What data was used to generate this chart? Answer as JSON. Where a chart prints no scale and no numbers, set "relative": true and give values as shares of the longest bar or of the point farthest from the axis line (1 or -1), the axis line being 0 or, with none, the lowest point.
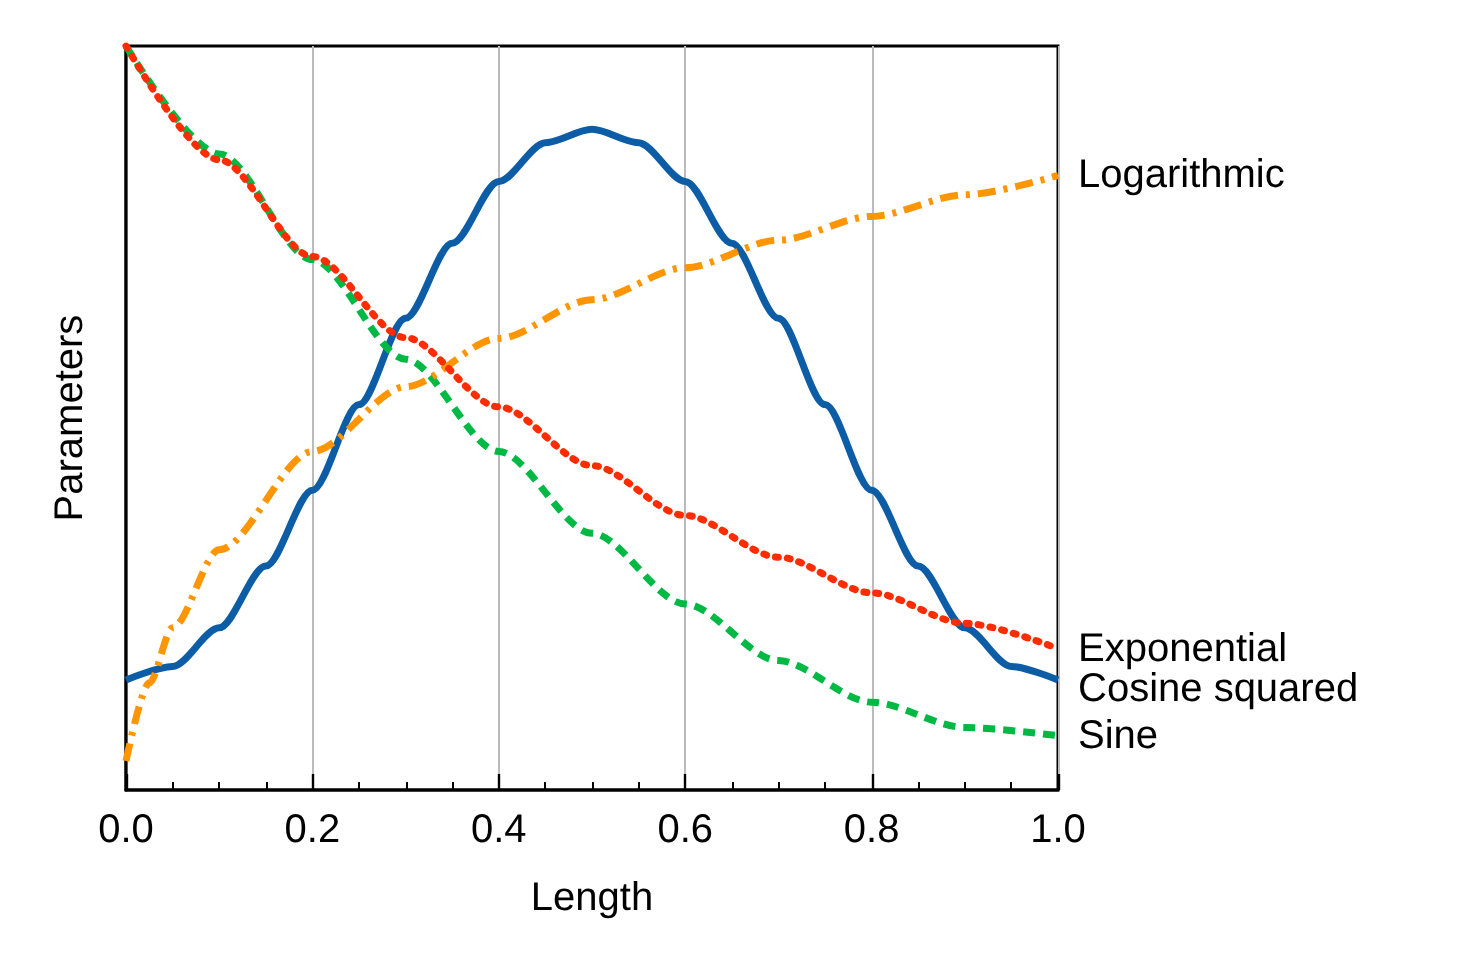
{
  "chart_data": {
    "type": "line",
    "relative": true,
    "xlabel": "Length",
    "ylabel": "Parameters",
    "xlim": [
      0,
      1
    ],
    "xticks": [
      {
        "value": 0,
        "label": "0.0"
      },
      {
        "value": 0.2,
        "label": "0.2"
      },
      {
        "value": 0.4,
        "label": "0.4"
      },
      {
        "value": 0.6,
        "label": "0.6"
      },
      {
        "value": 0.8,
        "label": "0.8"
      },
      {
        "value": 1,
        "label": "1.0"
      }
    ],
    "grid": "x",
    "legend": false,
    "series": [
      {
        "name": "Cosine squared",
        "color": "#0c5da5",
        "line_style": "solid",
        "x": [
          0,
          0.05,
          0.1,
          0.15,
          0.2,
          0.25,
          0.3,
          0.35,
          0.4,
          0.45,
          0.5,
          0.55,
          0.6,
          0.65,
          0.7,
          0.75,
          0.8,
          0.85,
          0.9,
          0.95,
          1
        ],
        "values": [
          0.148,
          0.166,
          0.218,
          0.301,
          0.403,
          0.518,
          0.634,
          0.735,
          0.818,
          0.87,
          0.888,
          0.87,
          0.818,
          0.735,
          0.634,
          0.518,
          0.403,
          0.301,
          0.218,
          0.166,
          0.148
        ]
      },
      {
        "name": "Sine",
        "color": "#00b945",
        "line_style": "dashed",
        "x": [
          0,
          0.1,
          0.2,
          0.3,
          0.4,
          0.5,
          0.6,
          0.7,
          0.8,
          0.9,
          1
        ],
        "values": [
          1,
          0.855,
          0.713,
          0.579,
          0.455,
          0.345,
          0.25,
          0.174,
          0.118,
          0.084,
          0.073
        ]
      },
      {
        "name": "Logarithmic",
        "color": "#ff9500",
        "line_style": "dashdot",
        "x": [
          0,
          0.025,
          0.05,
          0.1,
          0.2,
          0.3,
          0.4,
          0.5,
          0.6,
          0.7,
          0.8,
          0.9,
          1
        ],
        "values": [
          0.039,
          0.144,
          0.218,
          0.323,
          0.455,
          0.542,
          0.607,
          0.659,
          0.702,
          0.739,
          0.771,
          0.8,
          0.826
        ]
      },
      {
        "name": "Exponential",
        "color": "#ff2c00",
        "line_style": "dotted",
        "x": [
          0,
          0.1,
          0.2,
          0.3,
          0.4,
          0.5,
          0.6,
          0.7,
          0.8,
          0.9,
          1
        ],
        "values": [
          1,
          0.847,
          0.717,
          0.608,
          0.515,
          0.436,
          0.369,
          0.313,
          0.265,
          0.224,
          0.19
        ]
      }
    ]
  }
}
